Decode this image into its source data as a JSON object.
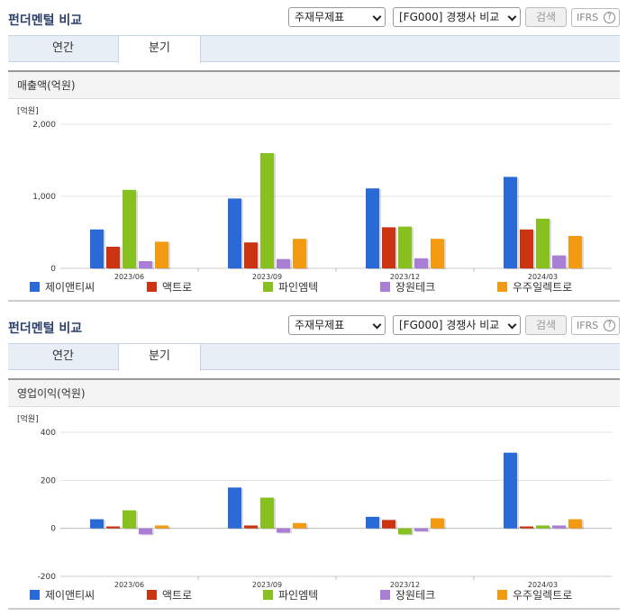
{
  "sections": [
    {
      "title": "펀더멘털 비교",
      "select_statement": "주재무제표",
      "select_compare": "[FG000] 경쟁사 비교",
      "search_label": "검색",
      "ifrs_label": "IFRS",
      "ifrs_help": "?",
      "tabs": [
        {
          "label": "연간"
        },
        {
          "label": "분기"
        }
      ],
      "active_tab": 1,
      "chart_heading": "매출액(억원)"
    },
    {
      "title": "펀더멘털 비교",
      "select_statement": "주재무제표",
      "select_compare": "[FG000] 경쟁사 비교",
      "search_label": "검색",
      "ifrs_label": "IFRS",
      "ifrs_help": "?",
      "tabs": [
        {
          "label": "연간"
        },
        {
          "label": "분기"
        }
      ],
      "active_tab": 1,
      "chart_heading": "영업이익(억원)"
    }
  ],
  "colors": {
    "제이앤티씨": "#2a6ad8",
    "액트로": "#cc3311",
    "파인엠텍": "#88c020",
    "장원테크": "#a97fd6",
    "우주일렉트로": "#f39a13"
  },
  "chart_data": [
    {
      "type": "bar",
      "unit_label": "[억원]",
      "categories": [
        "2023/06",
        "2023/09",
        "2023/12",
        "2024/03"
      ],
      "ylim": [
        0,
        2000
      ],
      "yticks": [
        0,
        1000,
        2000
      ],
      "ytick_labels": [
        "0",
        "1,000",
        "2,000"
      ],
      "grid": true,
      "legend": "bottom",
      "series": [
        {
          "name": "제이앤티씨",
          "values": [
            540,
            970,
            1110,
            1270
          ]
        },
        {
          "name": "액트로",
          "values": [
            300,
            360,
            570,
            540
          ]
        },
        {
          "name": "파인엠텍",
          "values": [
            1090,
            1600,
            580,
            690
          ]
        },
        {
          "name": "장원테크",
          "values": [
            100,
            130,
            140,
            180
          ]
        },
        {
          "name": "우주일렉트로",
          "values": [
            370,
            410,
            410,
            450
          ]
        }
      ]
    },
    {
      "type": "bar",
      "unit_label": "[억원]",
      "categories": [
        "2023/06",
        "2023/09",
        "2023/12",
        "2024/03"
      ],
      "ylim": [
        -200,
        400
      ],
      "yticks": [
        -200,
        0,
        200,
        400
      ],
      "ytick_labels": [
        "-200",
        "0",
        "200",
        "400"
      ],
      "grid": true,
      "legend": "bottom",
      "series": [
        {
          "name": "제이앤티씨",
          "values": [
            38,
            170,
            48,
            315
          ]
        },
        {
          "name": "액트로",
          "values": [
            8,
            12,
            35,
            8
          ]
        },
        {
          "name": "파인엠텍",
          "values": [
            75,
            128,
            -25,
            12
          ]
        },
        {
          "name": "장원테크",
          "values": [
            -25,
            -18,
            -12,
            12
          ]
        },
        {
          "name": "우주일렉트로",
          "values": [
            12,
            22,
            42,
            38
          ]
        }
      ]
    }
  ]
}
